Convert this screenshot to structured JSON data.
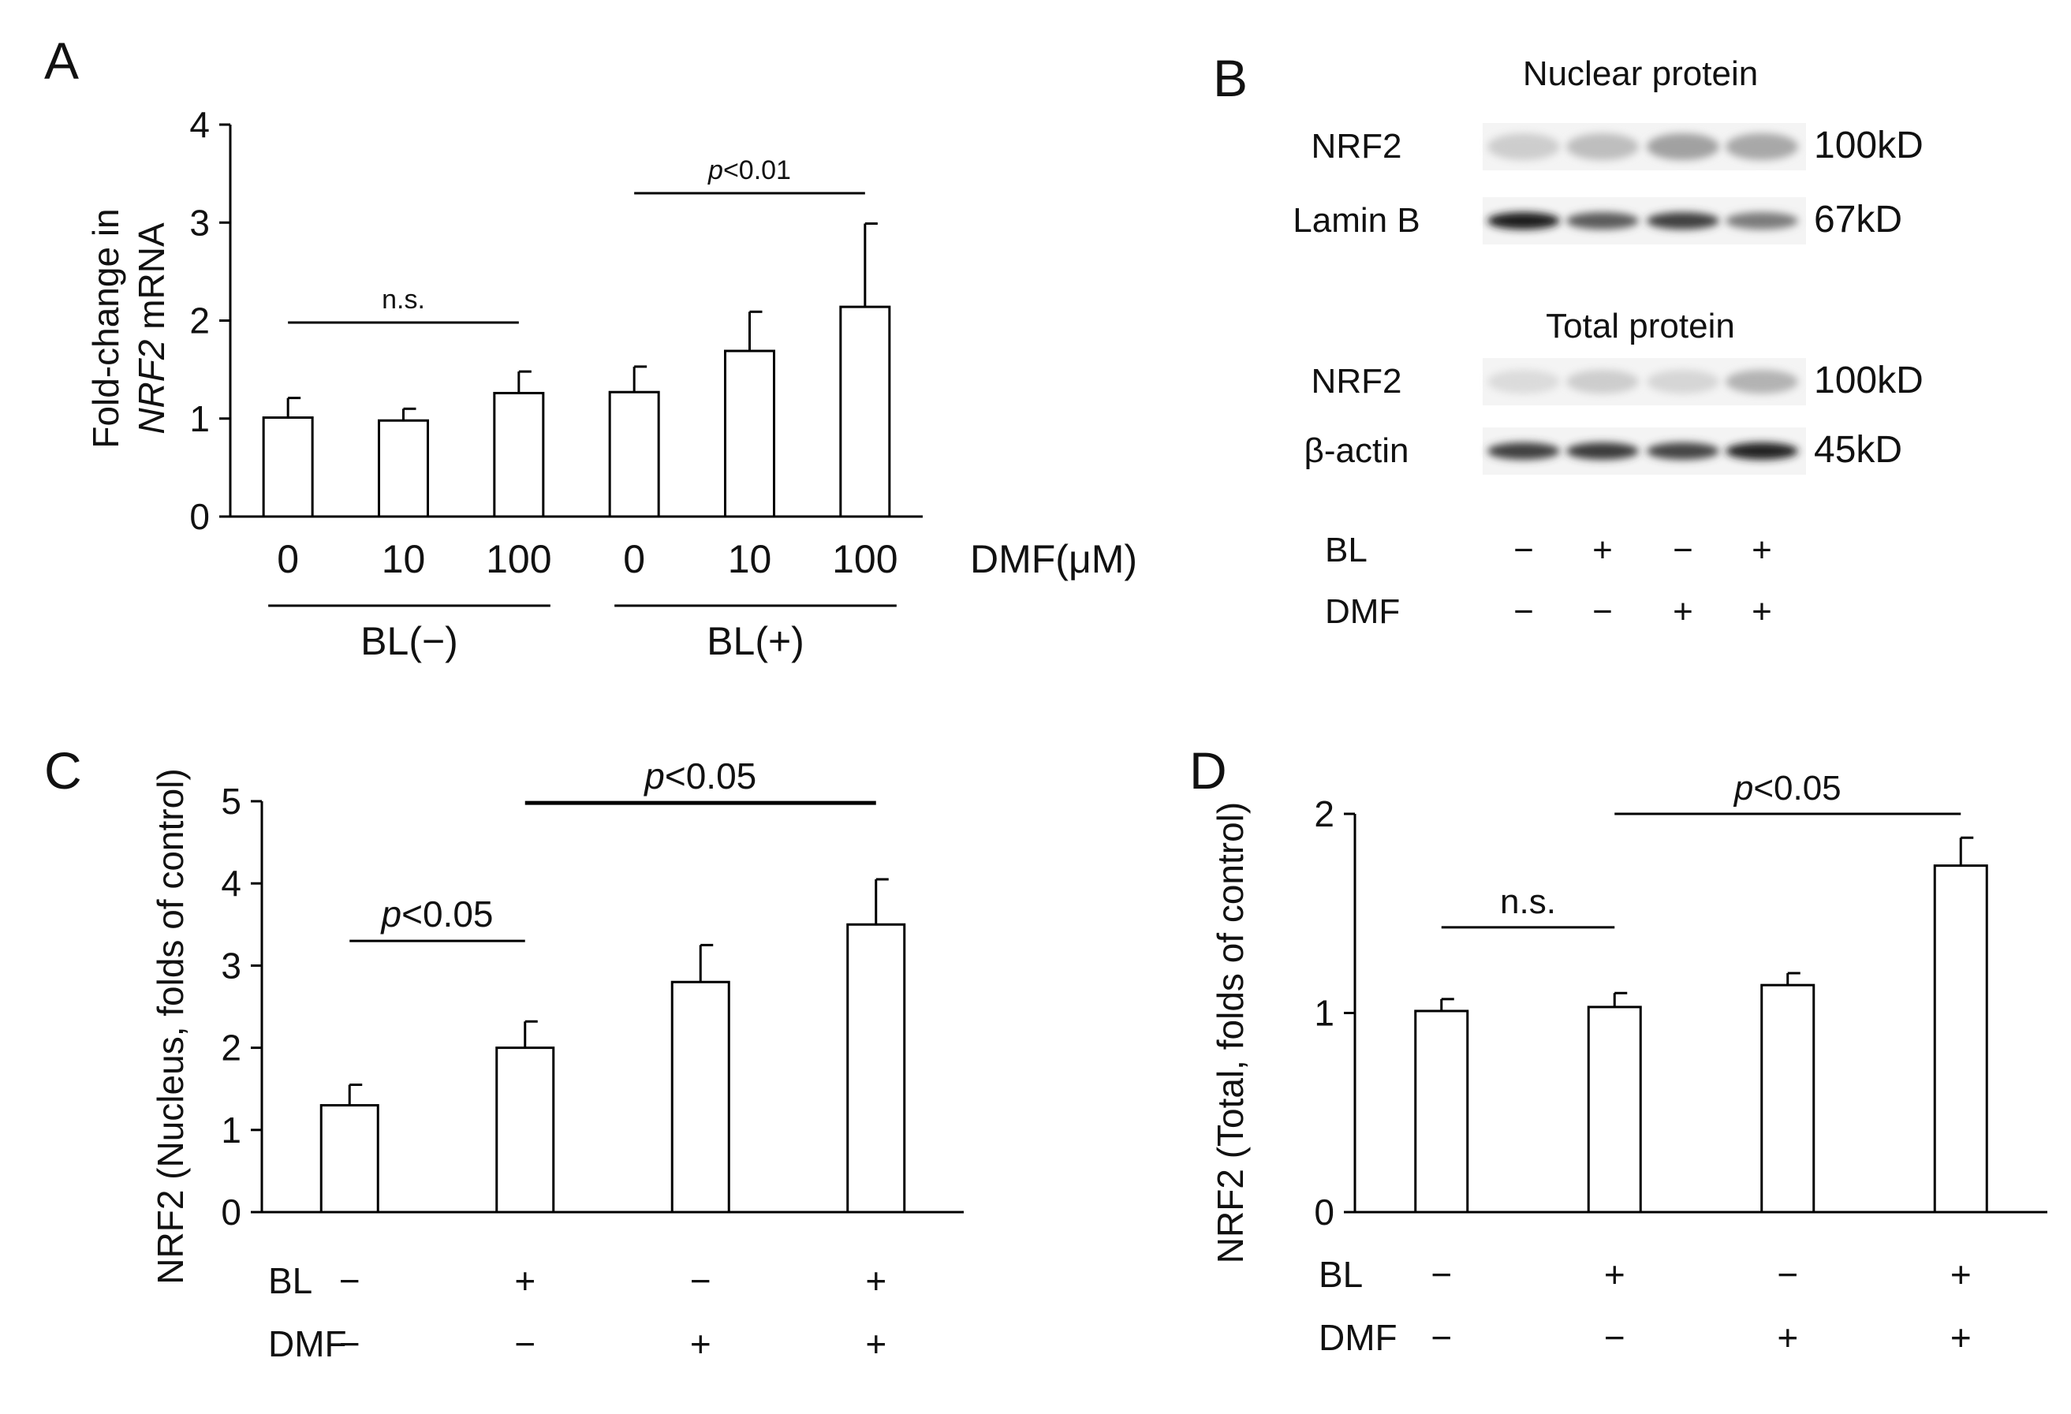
{
  "panels": {
    "A": "A",
    "B": "B",
    "C": "C",
    "D": "D"
  },
  "chart_data": [
    {
      "panel": "A",
      "type": "bar",
      "title": "",
      "ylabel_parts": [
        "Fold-change in",
        "NRF2",
        " mRNA"
      ],
      "ylim": [
        0,
        4
      ],
      "yticks": [
        "0",
        "1",
        "2",
        "3",
        "4"
      ],
      "categories": [
        "0",
        "10",
        "100",
        "0",
        "10",
        "100"
      ],
      "values": [
        1.01,
        0.98,
        1.26,
        1.27,
        1.69,
        2.14
      ],
      "errors": [
        0.2,
        0.12,
        0.22,
        0.26,
        0.4,
        0.85
      ],
      "xlabel": "DMF(μM)",
      "groups": [
        {
          "label": "BL(−)",
          "from": 0,
          "to": 2
        },
        {
          "label": "BL(+)",
          "from": 3,
          "to": 5
        }
      ],
      "annotations": [
        {
          "text": "n.s.",
          "from": 0,
          "to": 2,
          "level": 1.98
        },
        {
          "italic": "p",
          "text": "<0.01",
          "from": 3,
          "to": 5,
          "level": 3.3
        }
      ]
    },
    {
      "panel": "C",
      "type": "bar",
      "title": "",
      "ylabel": "NRF2 (Nucleus, folds of control)",
      "ylim": [
        0,
        5
      ],
      "yticks": [
        "0",
        "1",
        "2",
        "3",
        "4",
        "5"
      ],
      "values": [
        1.3,
        2.0,
        2.8,
        3.5
      ],
      "errors": [
        0.25,
        0.32,
        0.45,
        0.55
      ],
      "rows": [
        {
          "label": "BL",
          "signs": [
            "−",
            "+",
            "−",
            "+"
          ]
        },
        {
          "label": "DMF",
          "signs": [
            "−",
            "−",
            "+",
            "+"
          ]
        }
      ],
      "annotations": [
        {
          "italic": "p",
          "text": "<0.05",
          "from": 0,
          "to": 1,
          "level": 3.3,
          "bold": false
        },
        {
          "italic": "p",
          "text": "<0.05",
          "from": 1,
          "to": 3,
          "level": 4.98,
          "bold": true
        }
      ]
    },
    {
      "panel": "D",
      "type": "bar",
      "title": "",
      "ylabel": "NRF2 (Total, folds of control)",
      "ylim": [
        0,
        2
      ],
      "yticks": [
        "0",
        "1",
        "2"
      ],
      "values": [
        1.01,
        1.03,
        1.14,
        1.74
      ],
      "errors": [
        0.06,
        0.07,
        0.06,
        0.14
      ],
      "rows": [
        {
          "label": "BL",
          "signs": [
            "−",
            "+",
            "−",
            "+"
          ]
        },
        {
          "label": "DMF",
          "signs": [
            "−",
            "−",
            "+",
            "+"
          ]
        }
      ],
      "annotations": [
        {
          "text": "n.s.",
          "from": 0,
          "to": 1,
          "level": 1.43
        },
        {
          "italic": "p",
          "text": "<0.05",
          "from": 1,
          "to": 3,
          "level": 2.0
        }
      ]
    }
  ],
  "western_blot": {
    "sections": [
      {
        "title": "Nuclear protein",
        "rows": [
          {
            "label": "NRF2",
            "size": "100kD",
            "intensities": [
              0.18,
              0.25,
              0.38,
              0.35
            ]
          },
          {
            "label": "Lamin B",
            "size": "67kD",
            "intensities": [
              0.98,
              0.7,
              0.82,
              0.55
            ]
          }
        ]
      },
      {
        "title": "Total protein",
        "rows": [
          {
            "label": "NRF2",
            "size": "100kD",
            "intensities": [
              0.12,
              0.18,
              0.14,
              0.3
            ]
          },
          {
            "label": "β-actin",
            "size": "45kD",
            "intensities": [
              0.82,
              0.85,
              0.8,
              0.95
            ]
          }
        ]
      }
    ],
    "conditions": [
      {
        "label": "BL",
        "signs": [
          "−",
          "+",
          "−",
          "+"
        ]
      },
      {
        "label": "DMF",
        "signs": [
          "−",
          "−",
          "+",
          "+"
        ]
      }
    ]
  }
}
